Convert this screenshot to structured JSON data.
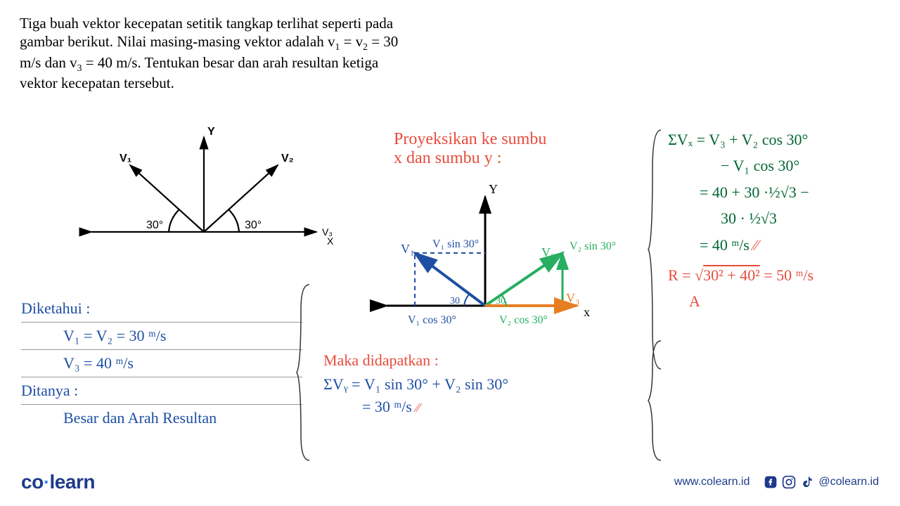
{
  "problem": {
    "text_html": "Tiga buah vektor kecepatan setitik tangkap terlihat seperti pada gambar berikut. Nilai masing-masing vektor adalah v<sub>1</sub> = v<sub>2</sub> = 30 m/s dan v<sub>3</sub> = 40 m/s. Tentukan besar dan arah resultan ketiga vektor kecepatan tersebut."
  },
  "printed_diagram": {
    "axis_label_y": "Y",
    "axis_label_x": "X",
    "v1_label": "V₁",
    "v2_label": "V₂",
    "v3_label": "V₃",
    "angle_left": "30°",
    "angle_right": "30°",
    "stroke": "#000000",
    "stroke_width": 2.2
  },
  "projection_title": {
    "line1": "Proyeksikan ke sumbu",
    "line2": "x dan sumbu y  :",
    "color": "#e74c3c"
  },
  "projection_diagram": {
    "axis_label_y": "Y",
    "axis_label_x": "x",
    "v1_label": "V₁",
    "v2_label": "V₂",
    "v3_label": "V₃",
    "v1sin": "V₁ sin 30°",
    "v2sin": "V₂ sin 30°",
    "v1cos": "V₁ cos 30°",
    "v2cos": "V₂ cos 30°",
    "angle_left": "30",
    "angle_right": "30",
    "v1_color": "#1e4fa3",
    "v2_color": "#27ae60",
    "v3_color": "#e67e22",
    "axis_color": "#000000"
  },
  "col1": {
    "diketahui": "Diketahui  :",
    "v1v2": "V₁ = V₂ = 30 ᵐ/s",
    "v3": "V₃ = 40 ᵐ/s",
    "ditanya": "Ditanya :",
    "besar": "Besar dan Arah Resultan"
  },
  "col2": {
    "maka": "Maka  didapatkan :",
    "evy": "ΣVᵧ  =  V₁ sin 30° + V₂ sin 30°",
    "evy_result": "= 30 ᵐ/s"
  },
  "col3": {
    "evx1": "ΣVₓ  =  V₃ + V₂ cos 30°",
    "evx2": "− V₁ cos 30°",
    "evx3": "=  40 + 30 ·½√3  −",
    "evx4": "30 · ½√3",
    "evx5": "=  40 ᵐ/s",
    "r_eq": "R  =  √(30² + 40²) = 50 ᵐ/s",
    "a": "A"
  },
  "footer": {
    "brand_co": "co",
    "brand_learn": "learn",
    "url": "www.colearn.id",
    "handle": "@colearn.id",
    "icon_color": "#1e3a8a"
  }
}
